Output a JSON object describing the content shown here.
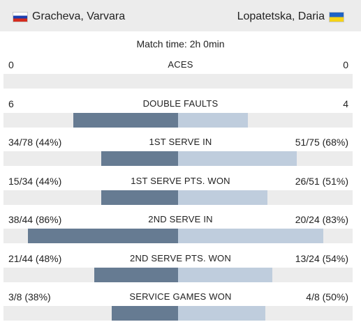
{
  "player_left": {
    "name": "Gracheva, Varvara",
    "flag": "russia-flag-icon"
  },
  "player_right": {
    "name": "Lopatetska, Daria",
    "flag": "ukraine-flag-icon"
  },
  "match_time": "Match time: 2h 0min",
  "colors": {
    "left_bar": "#667b92",
    "right_bar": "#bfcddd",
    "track": "#ececec"
  },
  "stats": [
    {
      "label": "ACES",
      "left": "0",
      "right": "0",
      "left_ratio": 0,
      "right_ratio": 0
    },
    {
      "label": "DOUBLE FAULTS",
      "left": "6",
      "right": "4",
      "left_ratio": 0.6,
      "right_ratio": 0.4
    },
    {
      "label": "1ST SERVE IN",
      "left": "34/78 (44%)",
      "right": "51/75 (68%)",
      "left_ratio": 0.44,
      "right_ratio": 0.68
    },
    {
      "label": "1ST SERVE PTS. WON",
      "left": "15/34 (44%)",
      "right": "26/51 (51%)",
      "left_ratio": 0.44,
      "right_ratio": 0.51
    },
    {
      "label": "2ND SERVE IN",
      "left": "38/44 (86%)",
      "right": "20/24 (83%)",
      "left_ratio": 0.86,
      "right_ratio": 0.83
    },
    {
      "label": "2ND SERVE PTS. WON",
      "left": "21/44 (48%)",
      "right": "13/24 (54%)",
      "left_ratio": 0.48,
      "right_ratio": 0.54
    },
    {
      "label": "SERVICE GAMES WON",
      "left": "3/8 (38%)",
      "right": "4/8 (50%)",
      "left_ratio": 0.38,
      "right_ratio": 0.5
    }
  ]
}
